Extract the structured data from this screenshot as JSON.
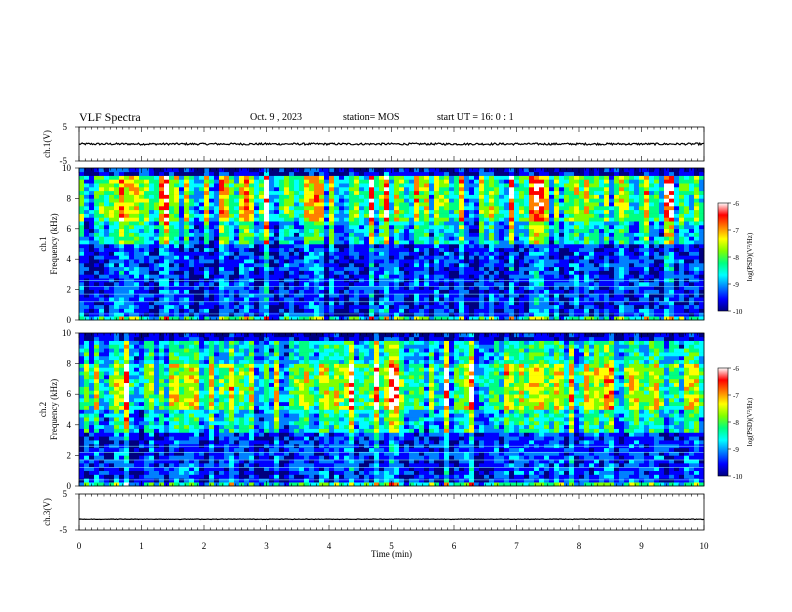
{
  "header": {
    "title": "VLF Spectra",
    "date": "Oct. 9 , 2023",
    "station": "station= MOS",
    "start": "start  UT =   16: 0  : 1"
  },
  "colors": {
    "colormap": [
      "#00007f",
      "#0000ff",
      "#0080ff",
      "#00ffff",
      "#00ff80",
      "#80ff00",
      "#ffff00",
      "#ff8000",
      "#ff0000",
      "#ffffff"
    ],
    "background": "#00007f",
    "waveform_line": "#000000"
  },
  "chart_data": [
    {
      "type": "line",
      "name": "ch1-waveform",
      "ylabel": "ch.1(V)",
      "ylim": [
        -5,
        5
      ],
      "yticks": [
        "5",
        "-5"
      ],
      "x_range_min": [
        0,
        10
      ],
      "baseline_value": 0,
      "description_of_values": "low-amplitude noise around 0 V"
    },
    {
      "type": "heatmap",
      "name": "ch1-spectrogram",
      "ylabel": "ch.1\nFrequency (kHz)",
      "ylim": [
        0,
        10
      ],
      "yticks": [
        "0",
        "2",
        "4",
        "6",
        "8",
        "10"
      ],
      "xlim": [
        0,
        10
      ],
      "colorbar": {
        "label": "log(PSD)(V²/Hz)",
        "range": [
          -10,
          -6
        ],
        "ticks": [
          "-6",
          "-7",
          "-8",
          "-9",
          "-10"
        ]
      },
      "bands_kHz": {
        "strong_band": [
          6.5,
          9.5
        ],
        "hum_lines": [
          0.4,
          1.2,
          1.7,
          2.2,
          2.6
        ]
      }
    },
    {
      "type": "heatmap",
      "name": "ch2-spectrogram",
      "ylabel": "ch.2\nFrequency (kHz)",
      "ylim": [
        0,
        10
      ],
      "yticks": [
        "0",
        "2",
        "4",
        "6",
        "8",
        "10"
      ],
      "xlim": [
        0,
        10
      ],
      "colorbar": {
        "label": "log(PSD)(V²/Hz)",
        "range": [
          -10,
          -6
        ],
        "ticks": [
          "-6",
          "-7",
          "-8",
          "-9",
          "-10"
        ]
      },
      "bands_kHz": {
        "strong_band": [
          5.0,
          8.0
        ],
        "hum_lines": [
          0.4,
          1.2,
          1.7,
          2.2,
          2.6
        ]
      }
    },
    {
      "type": "line",
      "name": "ch3-waveform",
      "ylabel": "ch.3(V)",
      "ylim": [
        -5,
        5
      ],
      "yticks": [
        "5",
        "-5"
      ],
      "baseline_value": -2,
      "xlim": [
        0,
        10
      ],
      "xlabel": "Time (min)",
      "xticks": [
        "0",
        "1",
        "2",
        "3",
        "4",
        "5",
        "6",
        "7",
        "8",
        "9",
        "10"
      ]
    }
  ]
}
